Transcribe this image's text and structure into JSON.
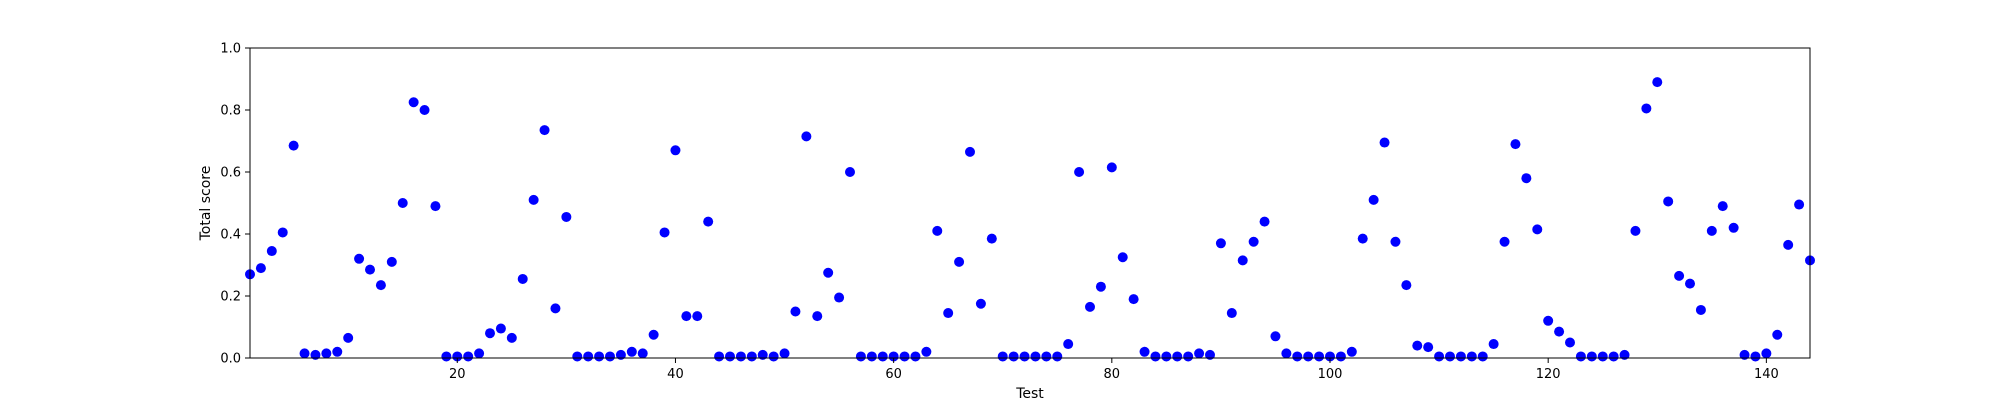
{
  "chart_data": {
    "type": "scatter",
    "title": "",
    "xlabel": "Test",
    "ylabel": "Total score",
    "xlim": [
      1,
      144
    ],
    "ylim": [
      0,
      1
    ],
    "x_ticks": [
      20,
      40,
      60,
      80,
      100,
      120,
      140
    ],
    "x_tick_labels": [
      "20",
      "40",
      "60",
      "80",
      "100",
      "120",
      "140"
    ],
    "y_ticks": [
      0,
      0.2,
      0.4,
      0.6,
      0.8,
      1.0
    ],
    "y_tick_labels": [
      "0.0",
      "0.2",
      "0.4",
      "0.6",
      "0.8",
      "1.0"
    ],
    "grid": false,
    "marker_color": "#0000ff",
    "series": [
      {
        "x": [
          1,
          2,
          3,
          4,
          5,
          6,
          7,
          8,
          9,
          10,
          11,
          12,
          13,
          14,
          15,
          16,
          17,
          18,
          19,
          20,
          21,
          22,
          23,
          24,
          25,
          26,
          27,
          28,
          29,
          30,
          31,
          32,
          33,
          34,
          35,
          36,
          37,
          38,
          39,
          40,
          41,
          42,
          43,
          44,
          45,
          46,
          47,
          48,
          49,
          50,
          51,
          52,
          53,
          54,
          55,
          56,
          57,
          58,
          59,
          60,
          61,
          62,
          63,
          64,
          65,
          66,
          67,
          68,
          69,
          70,
          71,
          72,
          73,
          74,
          75,
          76,
          77,
          78,
          79,
          80,
          81,
          82,
          83,
          84,
          85,
          86,
          87,
          88,
          89,
          90,
          91,
          92,
          93,
          94,
          95,
          96,
          97,
          98,
          99,
          100,
          101,
          102,
          103,
          104,
          105,
          106,
          107,
          108,
          109,
          110,
          111,
          112,
          113,
          114,
          115,
          116,
          117,
          118,
          119,
          120,
          121,
          122,
          123,
          124,
          125,
          126,
          127,
          128,
          129,
          130,
          131,
          132,
          133,
          134,
          135,
          136,
          137,
          138,
          139,
          140,
          141,
          142,
          143,
          144
        ],
        "y": [
          0.27,
          0.29,
          0.345,
          0.405,
          0.685,
          0.015,
          0.01,
          0.015,
          0.02,
          0.065,
          0.32,
          0.285,
          0.235,
          0.31,
          0.5,
          0.825,
          0.8,
          0.49,
          0.005,
          0.005,
          0.005,
          0.015,
          0.08,
          0.095,
          0.065,
          0.255,
          0.51,
          0.735,
          0.16,
          0.455,
          0.005,
          0.005,
          0.005,
          0.005,
          0.01,
          0.02,
          0.015,
          0.075,
          0.405,
          0.67,
          0.135,
          0.135,
          0.44,
          0.005,
          0.005,
          0.005,
          0.005,
          0.01,
          0.005,
          0.015,
          0.15,
          0.715,
          0.135,
          0.275,
          0.195,
          0.6,
          0.005,
          0.005,
          0.005,
          0.005,
          0.005,
          0.005,
          0.02,
          0.41,
          0.145,
          0.31,
          0.665,
          0.175,
          0.385,
          0.005,
          0.005,
          0.005,
          0.005,
          0.005,
          0.005,
          0.045,
          0.6,
          0.165,
          0.23,
          0.615,
          0.325,
          0.19,
          0.02,
          0.005,
          0.005,
          0.005,
          0.005,
          0.015,
          0.01,
          0.37,
          0.145,
          0.315,
          0.375,
          0.44,
          0.07,
          0.015,
          0.005,
          0.005,
          0.005,
          0.005,
          0.005,
          0.02,
          0.385,
          0.51,
          0.695,
          0.375,
          0.235,
          0.04,
          0.035,
          0.005,
          0.005,
          0.005,
          0.005,
          0.005,
          0.045,
          0.375,
          0.69,
          0.58,
          0.415,
          0.12,
          0.085,
          0.05,
          0.005,
          0.005,
          0.005,
          0.005,
          0.01,
          0.41,
          0.805,
          0.89,
          0.505,
          0.265,
          0.24,
          0.155,
          0.41,
          0.49,
          0.42,
          0.01,
          0.005,
          0.015,
          0.075,
          0.365,
          0.495,
          0.315
        ]
      }
    ]
  }
}
